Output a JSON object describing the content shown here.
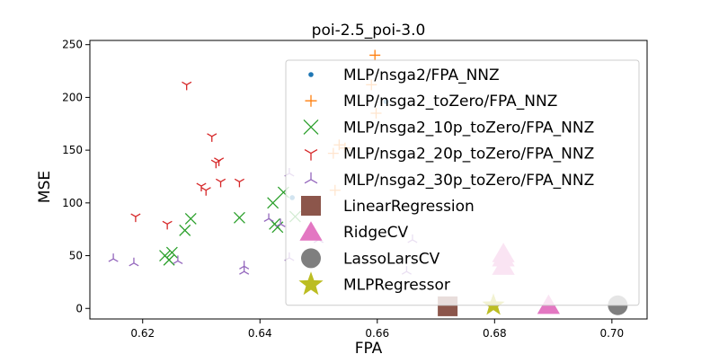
{
  "chart_data": {
    "type": "scatter",
    "title": "poi-2.5_poi-3.0",
    "xlabel": "FPA",
    "ylabel": "MSE",
    "xlim": [
      0.611,
      0.706
    ],
    "ylim": [
      -10,
      254
    ],
    "xticks": [
      0.62,
      0.64,
      0.66,
      0.68,
      0.7
    ],
    "xtick_labels": [
      "0.62",
      "0.64",
      "0.66",
      "0.68",
      "0.70"
    ],
    "yticks": [
      0,
      50,
      100,
      150,
      200,
      250
    ],
    "ytick_labels": [
      "0",
      "50",
      "100",
      "150",
      "200",
      "250"
    ],
    "grid": false,
    "legend_position": "upper right",
    "series": [
      {
        "name": "MLP/nsga2/FPA_NNZ",
        "marker": "point",
        "color": "#1f77b4",
        "points": [
          [
            0.6455,
            105
          ],
          [
            0.6615,
            196
          ]
        ]
      },
      {
        "name": "MLP/nsga2_toZero/FPA_NNZ",
        "marker": "plus",
        "color": "#ff7f0e",
        "points": [
          [
            0.6596,
            240
          ],
          [
            0.6535,
            155
          ],
          [
            0.6525,
            147
          ],
          [
            0.6545,
            152
          ],
          [
            0.6528,
            112
          ],
          [
            0.659,
            212
          ],
          [
            0.6598,
            185
          ]
        ]
      },
      {
        "name": "MLP/nsga2_10p_toZero/FPA_NNZ",
        "marker": "x",
        "color": "#2ca02c",
        "points": [
          [
            0.6238,
            50
          ],
          [
            0.6245,
            46
          ],
          [
            0.625,
            53
          ],
          [
            0.6272,
            74
          ],
          [
            0.6282,
            85
          ],
          [
            0.6365,
            86
          ],
          [
            0.6422,
            100
          ],
          [
            0.6425,
            80
          ],
          [
            0.643,
            77
          ],
          [
            0.644,
            110
          ],
          [
            0.646,
            87
          ]
        ]
      },
      {
        "name": "MLP/nsga2_20p_toZero/FPA_NNZ",
        "marker": "tri_down",
        "color": "#d62728",
        "points": [
          [
            0.6275,
            212
          ],
          [
            0.6318,
            163
          ],
          [
            0.6325,
            138
          ],
          [
            0.633,
            140
          ],
          [
            0.63,
            116
          ],
          [
            0.6308,
            112
          ],
          [
            0.6333,
            120
          ],
          [
            0.6365,
            120
          ],
          [
            0.6188,
            87
          ],
          [
            0.6242,
            80
          ]
        ]
      },
      {
        "name": "MLP/nsga2_30p_toZero/FPA_NNZ",
        "marker": "tri_up",
        "color": "#9467bd",
        "points": [
          [
            0.615,
            47
          ],
          [
            0.6185,
            43
          ],
          [
            0.626,
            45
          ],
          [
            0.6373,
            40
          ],
          [
            0.6373,
            35
          ],
          [
            0.6415,
            85
          ],
          [
            0.6435,
            80
          ],
          [
            0.645,
            128
          ],
          [
            0.645,
            48
          ],
          [
            0.665,
            35
          ],
          [
            0.666,
            65
          ],
          [
            0.65,
            65
          ]
        ]
      },
      {
        "name": "LinearRegression",
        "marker": "square",
        "color": "#8c564b",
        "points": [
          [
            0.672,
            2
          ]
        ]
      },
      {
        "name": "RidgeCV",
        "marker": "triangle",
        "color": "#e377c2",
        "points": [
          [
            0.6892,
            3
          ],
          [
            0.6815,
            48
          ],
          [
            0.6815,
            40
          ],
          [
            0.6815,
            52
          ]
        ]
      },
      {
        "name": "LassoLarsCV",
        "marker": "circle",
        "color": "#7f7f7f",
        "points": [
          [
            0.701,
            3
          ]
        ]
      },
      {
        "name": "MLPRegressor",
        "marker": "star",
        "color": "#bcbd22",
        "points": [
          [
            0.6798,
            3
          ]
        ]
      }
    ]
  }
}
